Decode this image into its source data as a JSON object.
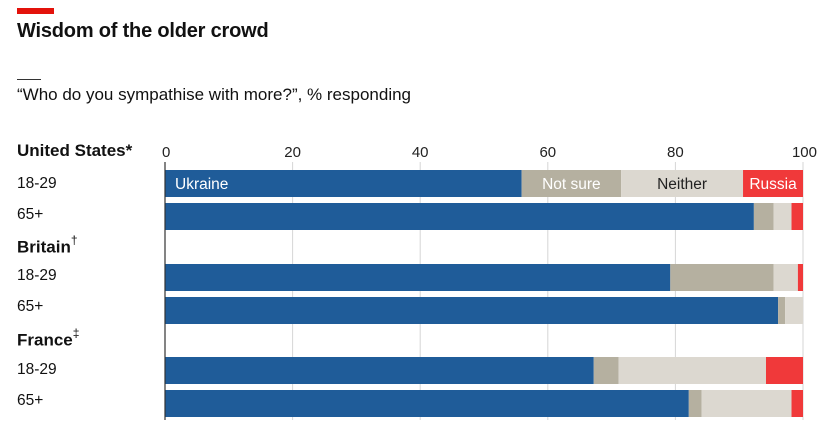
{
  "header": {
    "title": "Wisdom of the older crowd",
    "subtitle": "“Who do you sympathise with more?”, % responding"
  },
  "colors": {
    "ukraine": "#1f5c99",
    "not_sure": "#b5b0a0",
    "neither": "#dcd8d0",
    "russia": "#f0393a",
    "brand_red": "#e3120b"
  },
  "chart_data": {
    "type": "bar",
    "orientation": "horizontal-stacked",
    "title": "Wisdom of the older crowd",
    "subtitle": "“Who do you sympathise with more?”, % responding",
    "xlim": [
      0,
      100
    ],
    "x_ticks": [
      "0",
      "20",
      "40",
      "60",
      "80",
      "100"
    ],
    "series_names": [
      "Ukraine",
      "Not sure",
      "Neither",
      "Russia"
    ],
    "groups": [
      {
        "name": "United States",
        "mark": "*",
        "rows": [
          {
            "label": "18-29",
            "values": [
              55.9,
              15.6,
              19.1,
              9.4
            ]
          },
          {
            "label": "65+",
            "values": [
              92.3,
              3.1,
              2.8,
              1.8
            ]
          }
        ]
      },
      {
        "name": "Britain",
        "mark": "†",
        "rows": [
          {
            "label": "18-29",
            "values": [
              79.2,
              16.2,
              3.8,
              0.8
            ]
          },
          {
            "label": "65+",
            "values": [
              96.1,
              1.1,
              2.8,
              0
            ]
          }
        ]
      },
      {
        "name": "France",
        "mark": "‡",
        "rows": [
          {
            "label": "18-29",
            "values": [
              67.2,
              3.9,
              23.1,
              5.8
            ]
          },
          {
            "label": "65+",
            "values": [
              82.1,
              2.0,
              14.1,
              1.8
            ]
          }
        ]
      }
    ]
  }
}
